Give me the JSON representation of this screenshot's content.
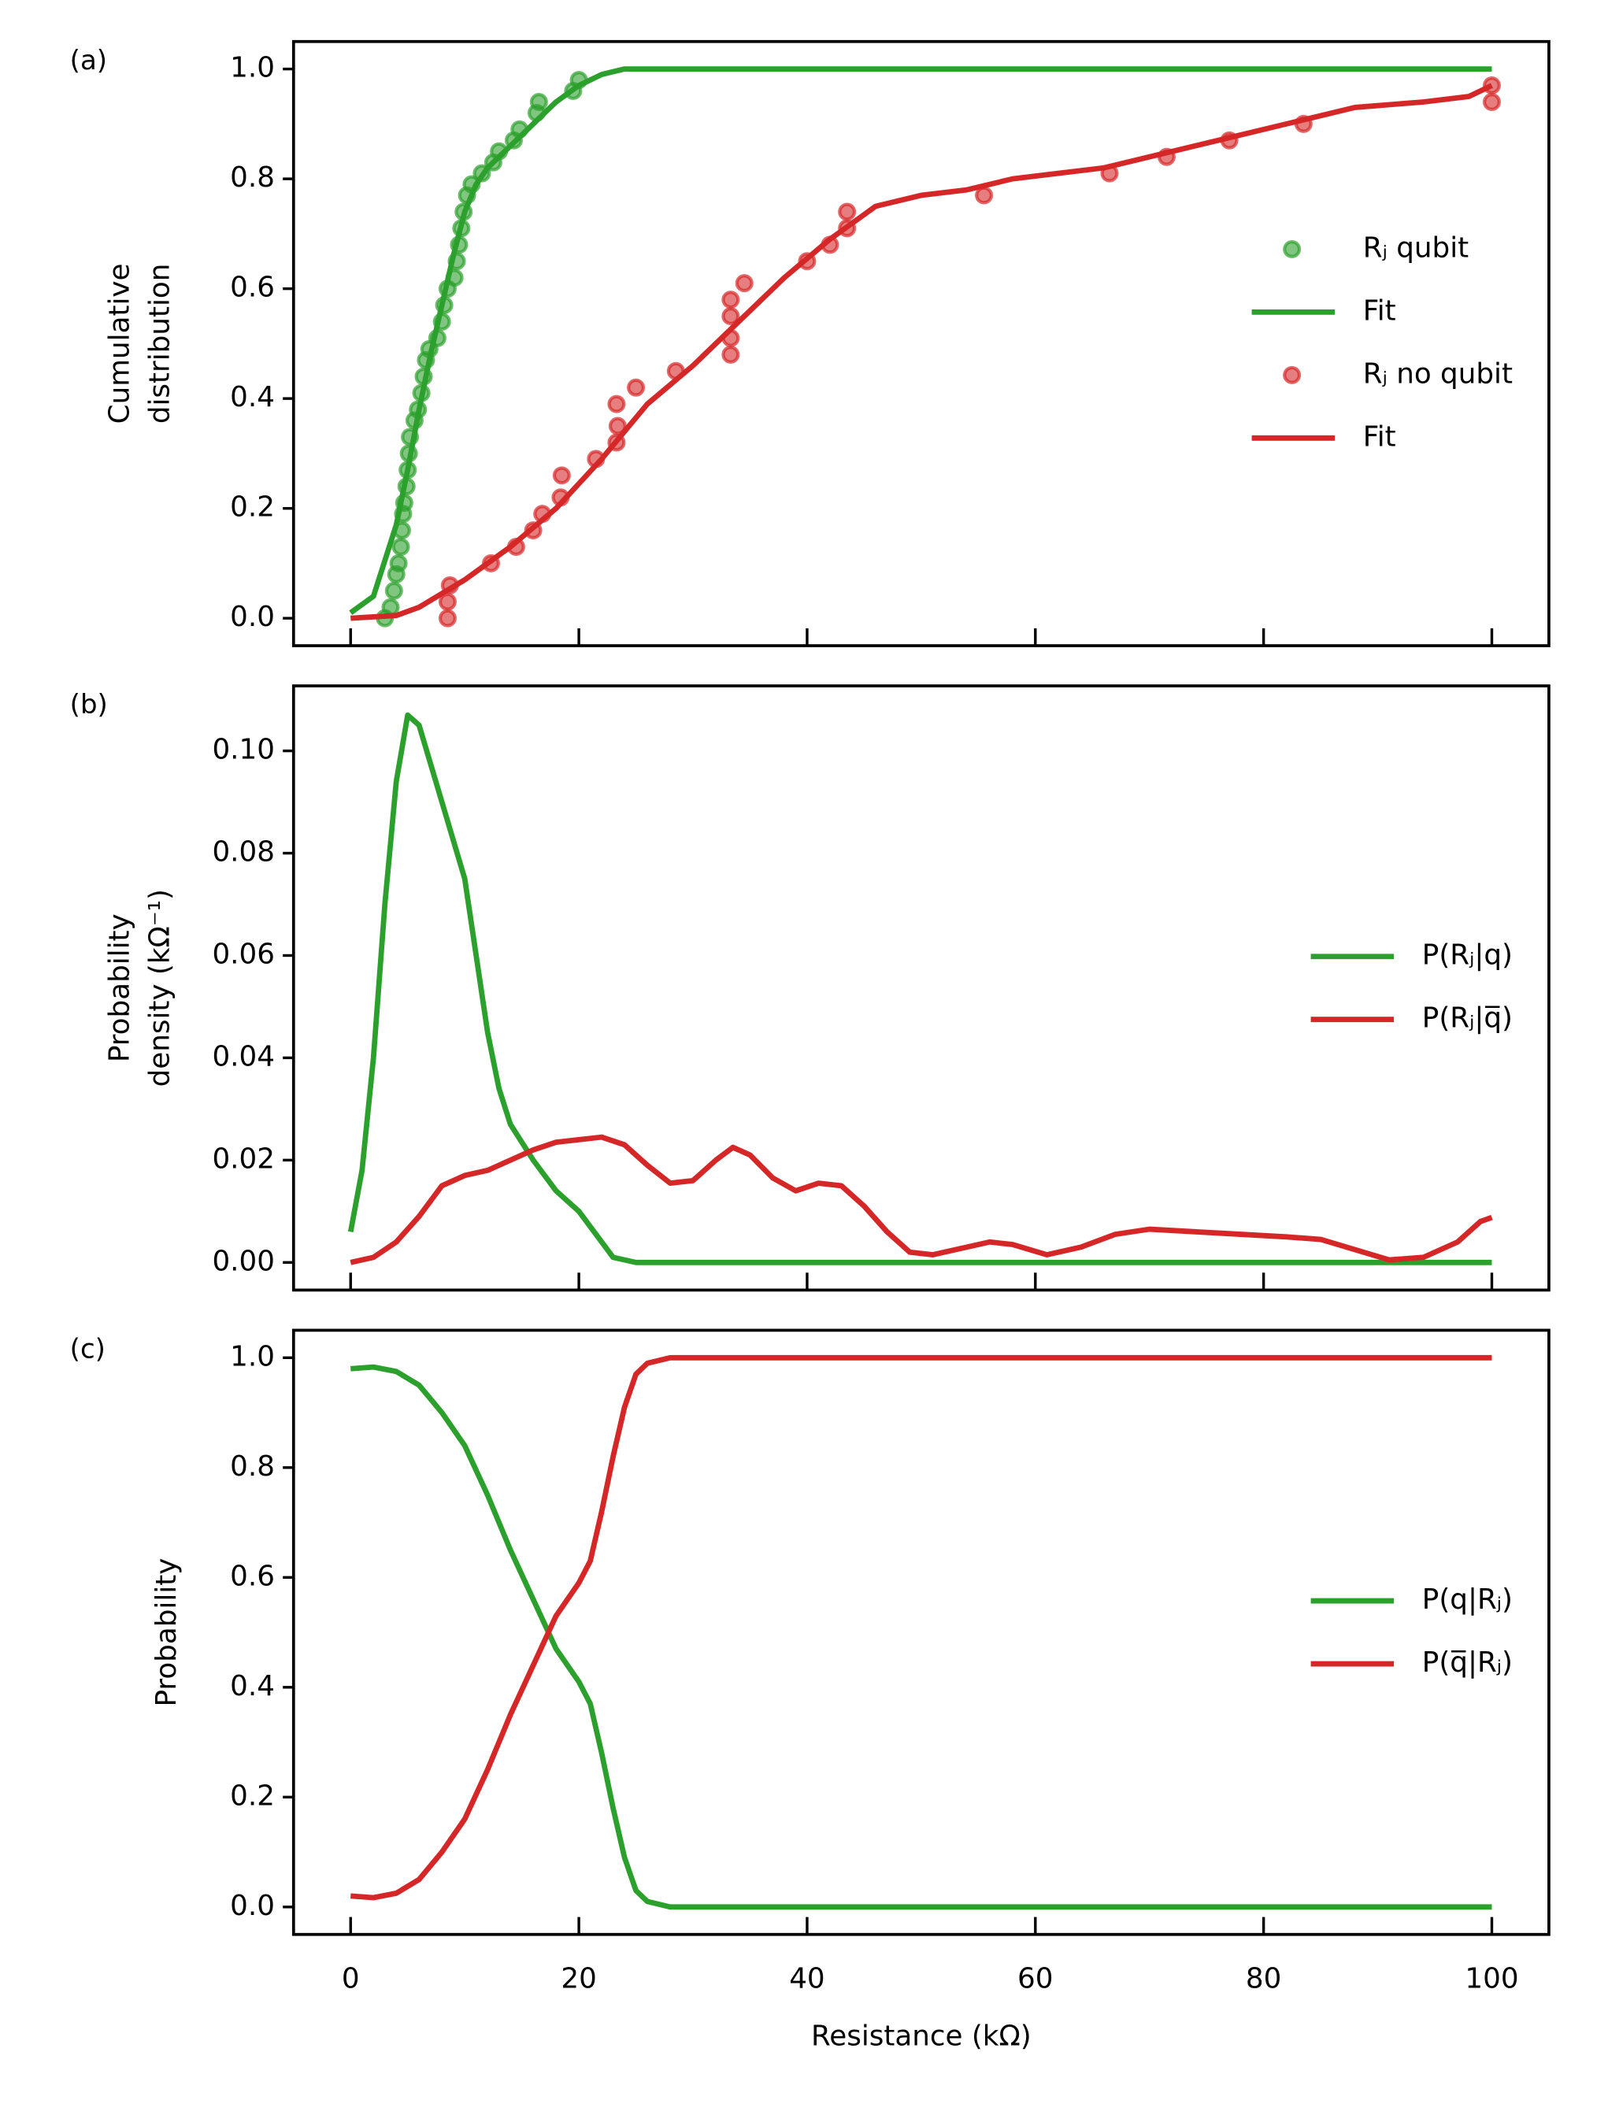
{
  "chart_data": [
    {
      "type": "line",
      "panel_label": "(a)",
      "ylabel": [
        "Cumulative",
        "distribution"
      ],
      "xlim": [
        -5,
        105
      ],
      "xticks": [
        0,
        20,
        40,
        60,
        80,
        100
      ],
      "xtick_labels": false,
      "ylim": [
        -0.05,
        1.05
      ],
      "yticks": [
        {
          "value": 0,
          "label": "0.0"
        },
        0.2,
        0.4,
        0.6,
        0.8,
        {
          "value": 1,
          "label": "1.0"
        }
      ],
      "legend": "center right",
      "series": [
        {
          "name": "Rⱼ qubit",
          "color": "#2ca02c",
          "mode": "markers",
          "x": [
            3,
            3.5,
            3.8,
            4,
            4.2,
            4.4,
            4.5,
            4.6,
            4.7,
            4.9,
            5,
            5.1,
            5.2,
            5.6,
            5.9,
            6.2,
            6.4,
            6.6,
            6.9,
            7.6,
            8,
            8.2,
            8.5,
            9.1,
            9.3,
            9.5,
            9.7,
            9.9,
            10.2,
            10.6,
            11.5,
            12.5,
            13,
            14.3,
            14.8,
            16.3,
            16.5,
            19.5,
            20
          ],
          "values": [
            0,
            0.02,
            0.05,
            0.08,
            0.1,
            0.13,
            0.16,
            0.19,
            0.21,
            0.24,
            0.27,
            0.3,
            0.33,
            0.36,
            0.38,
            0.41,
            0.44,
            0.47,
            0.49,
            0.51,
            0.54,
            0.57,
            0.6,
            0.62,
            0.65,
            0.68,
            0.71,
            0.74,
            0.77,
            0.79,
            0.81,
            0.83,
            0.85,
            0.87,
            0.89,
            0.92,
            0.94,
            0.96,
            0.98
          ]
        },
        {
          "name": "Fit",
          "color": "#2ca02c",
          "mode": "line",
          "x": [
            0,
            2,
            4,
            5,
            6,
            7,
            8,
            9,
            10,
            11,
            12,
            14,
            16,
            18,
            20,
            22,
            24,
            30,
            100
          ],
          "values": [
            0.01,
            0.04,
            0.17,
            0.27,
            0.38,
            0.48,
            0.57,
            0.66,
            0.74,
            0.79,
            0.82,
            0.86,
            0.9,
            0.94,
            0.97,
            0.99,
            1,
            1,
            1
          ]
        },
        {
          "name": "Rⱼ no qubit",
          "color": "#d62728",
          "mode": "markers",
          "x": [
            8.5,
            8.5,
            8.7,
            12.3,
            14.5,
            16,
            16.8,
            18.4,
            18.5,
            21.5,
            23.3,
            23.4,
            23.3,
            25,
            28.5,
            33.3,
            33.3,
            33.3,
            33.3,
            34.5,
            40,
            42,
            43.5,
            43.5,
            55.5,
            66.5,
            71.5,
            77,
            83.5,
            100,
            100
          ],
          "values": [
            0,
            0.03,
            0.06,
            0.1,
            0.13,
            0.16,
            0.19,
            0.22,
            0.26,
            0.29,
            0.32,
            0.35,
            0.39,
            0.42,
            0.45,
            0.48,
            0.51,
            0.55,
            0.58,
            0.61,
            0.65,
            0.68,
            0.71,
            0.74,
            0.77,
            0.81,
            0.84,
            0.87,
            0.9,
            0.94,
            0.97
          ]
        },
        {
          "name": "Fit",
          "color": "#d62728",
          "mode": "line",
          "x": [
            0,
            4,
            6,
            8,
            10,
            14,
            18,
            22,
            26,
            30,
            34,
            38,
            42,
            46,
            50,
            54,
            58,
            62,
            66,
            70,
            76,
            82,
            88,
            94,
            98,
            100
          ],
          "values": [
            0,
            0.005,
            0.02,
            0.045,
            0.07,
            0.13,
            0.2,
            0.29,
            0.39,
            0.46,
            0.54,
            0.62,
            0.69,
            0.75,
            0.77,
            0.78,
            0.8,
            0.81,
            0.82,
            0.84,
            0.87,
            0.9,
            0.93,
            0.94,
            0.95,
            0.97
          ]
        }
      ]
    },
    {
      "type": "line",
      "panel_label": "(b)",
      "ylabel": [
        "Probability",
        "density (kΩ⁻¹)"
      ],
      "xlim": [
        -5,
        105
      ],
      "xticks": [
        0,
        20,
        40,
        60,
        80,
        100
      ],
      "xtick_labels": false,
      "ylim": [
        -0.0054,
        0.1127
      ],
      "yticks": [
        {
          "value": 0,
          "label": "0.00"
        },
        0.02,
        0.04,
        0.06,
        0.08,
        {
          "value": 0.1,
          "label": "0.10"
        }
      ],
      "legend": "center right",
      "series": [
        {
          "name": "P(Rⱼ|q)",
          "color": "#2ca02c",
          "mode": "line",
          "x": [
            0,
            1,
            2,
            3,
            4,
            5,
            6,
            8,
            10,
            11,
            12,
            13,
            14,
            16,
            18,
            20,
            22,
            23,
            25,
            100
          ],
          "values": [
            0.006,
            0.018,
            0.04,
            0.07,
            0.094,
            0.107,
            0.105,
            0.09,
            0.075,
            0.06,
            0.045,
            0.034,
            0.027,
            0.02,
            0.014,
            0.01,
            0.004,
            0.001,
            0,
            0
          ]
        },
        {
          "name": "P(Rⱼ|q̅)",
          "color": "#d62728",
          "mode": "line",
          "x": [
            0,
            2,
            4,
            6,
            8,
            10,
            12,
            14,
            16,
            18,
            20,
            22,
            24,
            26,
            28,
            30,
            32,
            33.5,
            35,
            37,
            39,
            41,
            43,
            45,
            47,
            49,
            51,
            53,
            56,
            58,
            61,
            64,
            67,
            70,
            74,
            78,
            82,
            85,
            88,
            91,
            94,
            97,
            99,
            100
          ],
          "values": [
            0,
            0.001,
            0.004,
            0.009,
            0.015,
            0.017,
            0.018,
            0.02,
            0.022,
            0.0235,
            0.024,
            0.0245,
            0.023,
            0.019,
            0.0155,
            0.016,
            0.02,
            0.0225,
            0.021,
            0.0165,
            0.014,
            0.0155,
            0.015,
            0.011,
            0.006,
            0.002,
            0.0015,
            0.0025,
            0.004,
            0.0035,
            0.0015,
            0.003,
            0.0055,
            0.0065,
            0.006,
            0.0055,
            0.005,
            0.0045,
            0.0025,
            0.0005,
            0.001,
            0.004,
            0.008,
            0.0088
          ]
        }
      ]
    },
    {
      "type": "line",
      "panel_label": "(c)",
      "ylabel": [
        "Probability"
      ],
      "xlabel": "Resistance (kΩ)",
      "xlim": [
        -5,
        105
      ],
      "xticks": [
        0,
        20,
        40,
        60,
        80,
        100
      ],
      "xtick_labels": true,
      "ylim": [
        -0.05,
        1.05
      ],
      "yticks": [
        {
          "value": 0,
          "label": "0.0"
        },
        0.2,
        0.4,
        0.6,
        0.8,
        {
          "value": 1,
          "label": "1.0"
        }
      ],
      "legend": "center right",
      "series": [
        {
          "name": "P(q|Rⱼ)",
          "color": "#2ca02c",
          "mode": "line",
          "x": [
            0,
            2,
            4,
            6,
            8,
            10,
            12,
            14,
            16,
            18,
            20,
            21,
            22,
            23,
            24,
            25,
            26,
            28,
            100
          ],
          "values": [
            0.98,
            0.983,
            0.975,
            0.95,
            0.9,
            0.84,
            0.75,
            0.65,
            0.56,
            0.47,
            0.41,
            0.37,
            0.28,
            0.18,
            0.09,
            0.03,
            0.01,
            0,
            0
          ]
        },
        {
          "name": "P(q̅|Rⱼ)",
          "color": "#d62728",
          "mode": "line",
          "x": [
            0,
            2,
            4,
            6,
            8,
            10,
            12,
            14,
            16,
            18,
            20,
            21,
            22,
            23,
            24,
            25,
            26,
            28,
            100
          ],
          "values": [
            0.02,
            0.017,
            0.025,
            0.05,
            0.1,
            0.16,
            0.25,
            0.35,
            0.44,
            0.53,
            0.59,
            0.63,
            0.72,
            0.82,
            0.91,
            0.97,
            0.99,
            1,
            1
          ]
        }
      ]
    }
  ]
}
